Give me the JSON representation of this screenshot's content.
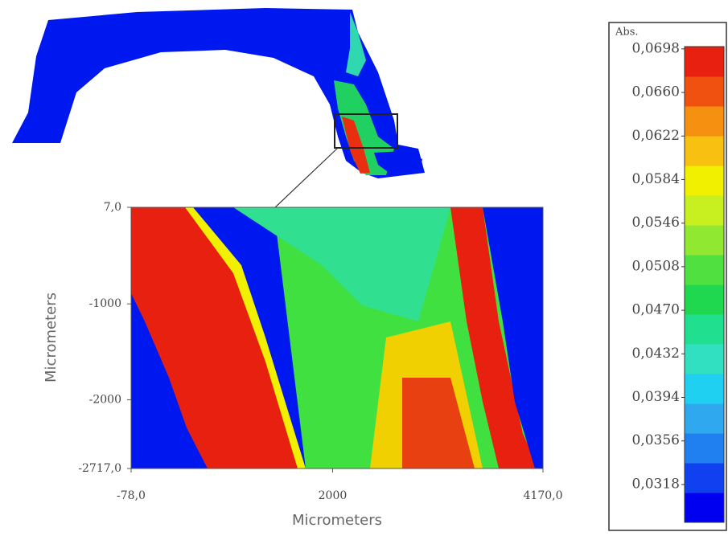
{
  "chart_data": {
    "type": "heatmap",
    "x_label": "Micrometers",
    "y_label": "Micrometers",
    "xlim": [
      -78,
      4170
    ],
    "xticks": [
      {
        "value": -78,
        "label": "-78,0"
      },
      2000,
      {
        "value": 4170,
        "label": "4170,0"
      }
    ],
    "ylim": [
      -2717,
      7
    ],
    "yticks": [
      {
        "value": 7,
        "label": "7,0"
      },
      -1000,
      -2000,
      {
        "value": -2717,
        "label": "-2717,0"
      }
    ],
    "colorbar_title": "Abs.",
    "clim": [
      0.0285,
      0.07
    ],
    "colorbar_ticks": [
      {
        "value": 0.0698,
        "label": "0,0698"
      },
      {
        "value": 0.066,
        "label": "0,0660"
      },
      {
        "value": 0.0622,
        "label": "0,0622"
      },
      {
        "value": 0.0584,
        "label": "0,0584"
      },
      {
        "value": 0.0546,
        "label": "0,0546"
      },
      {
        "value": 0.0508,
        "label": "0,0508"
      },
      {
        "value": 0.047,
        "label": "0,0470"
      },
      {
        "value": 0.0432,
        "label": "0,0432"
      },
      {
        "value": 0.0394,
        "label": "0,0394"
      },
      {
        "value": 0.0356,
        "label": "0,0356"
      },
      {
        "value": 0.0318,
        "label": "0,0318"
      }
    ],
    "colormap": [
      "#0000f0",
      "#1040f0",
      "#2080f0",
      "#30a8f0",
      "#20d0f0",
      "#30e0c0",
      "#20e090",
      "#20d850",
      "#50e040",
      "#90e830",
      "#c8f020",
      "#f0f000",
      "#f8c010",
      "#f59010",
      "#f05010",
      "#e82010"
    ]
  }
}
